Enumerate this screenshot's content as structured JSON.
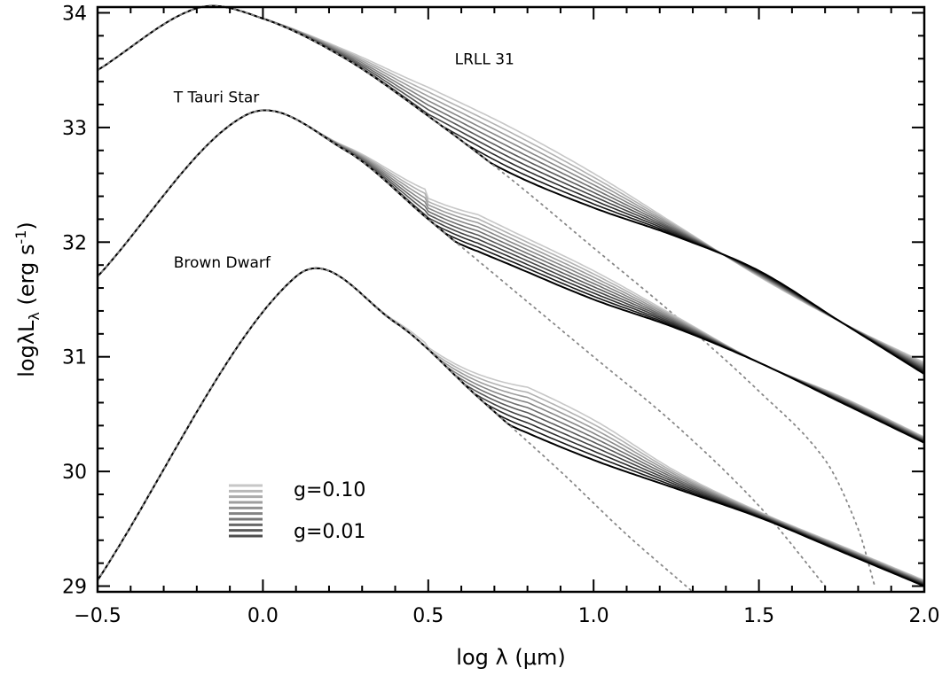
{
  "chart_data": {
    "type": "line",
    "title": "",
    "xlabel": "log λ (μm)",
    "ylabel": "logλL",
    "ylabel_sub": "λ",
    "ylabel_unit": " (erg s",
    "ylabel_unit_sup": "-1",
    "ylabel_unit_end": ")",
    "xlim": [
      -0.5,
      2.0
    ],
    "ylim": [
      28.95,
      34.05
    ],
    "x_ticks": [
      -0.5,
      0.0,
      0.5,
      1.0,
      1.5,
      2.0
    ],
    "x_tick_labels": [
      "−0.5",
      "0.0",
      "0.5",
      "1.0",
      "1.5",
      "2.0"
    ],
    "y_ticks": [
      29,
      30,
      31,
      32,
      33,
      34
    ],
    "y_tick_labels": [
      "29",
      "30",
      "31",
      "32",
      "33",
      "34"
    ],
    "grid": false,
    "legend": {
      "placement": "bottom-left",
      "g_values": [
        0.1,
        0.09,
        0.08,
        0.07,
        0.06,
        0.05,
        0.04,
        0.03,
        0.02,
        0.01
      ],
      "label_top": "g=0.10",
      "label_bottom": "g=0.01"
    },
    "groups": [
      {
        "name": "LRLL 31",
        "peak_x": -0.2,
        "peak_y": 34.04,
        "curvature": 3.6,
        "photosphere": {
          "x": [
            -0.5,
            -0.2,
            0.0,
            0.25,
            0.5,
            0.75,
            1.0,
            1.25,
            1.5,
            1.7,
            1.8,
            1.85
          ],
          "y": [
            33.5,
            34.04,
            33.95,
            33.6,
            33.1,
            32.55,
            31.95,
            31.35,
            30.7,
            30.1,
            29.5,
            29.0
          ]
        },
        "tail_base": {
          "x": [
            0.5,
            0.75,
            1.0,
            1.25,
            1.5,
            1.75,
            2.0
          ],
          "y": [
            33.0,
            32.6,
            32.3,
            32.05,
            31.75,
            31.3,
            30.85
          ]
        },
        "tail_g010": {
          "x": [
            0.5,
            0.75,
            1.0,
            1.25,
            1.5,
            1.75,
            2.0
          ],
          "y": [
            33.35,
            33.0,
            32.6,
            32.15,
            31.7,
            31.3,
            30.95
          ]
        }
      },
      {
        "name": "T Tauri Star",
        "peak_x": -0.05,
        "peak_y": 33.11,
        "curvature": 3.6,
        "photosphere": {
          "x": [
            -0.5,
            -0.05,
            0.25,
            0.5,
            0.75,
            1.0,
            1.25,
            1.5,
            1.7
          ],
          "y": [
            31.7,
            33.11,
            32.8,
            32.2,
            31.6,
            31.0,
            30.4,
            29.7,
            29.0
          ]
        },
        "tail_base": {
          "x": [
            0.5,
            0.75,
            1.0,
            1.25,
            1.5,
            1.75,
            2.0
          ],
          "y": [
            32.1,
            31.8,
            31.5,
            31.25,
            30.95,
            30.6,
            30.25
          ]
        },
        "tail_g010": {
          "x": [
            0.5,
            0.75,
            1.0,
            1.25,
            1.5,
            1.75,
            2.0
          ],
          "y": [
            32.45,
            32.1,
            31.75,
            31.35,
            30.95,
            30.65,
            30.3
          ]
        }
      },
      {
        "name": "Brown Dwarf",
        "peak_x": 0.1,
        "peak_y": 31.7,
        "curvature": 3.6,
        "photosphere": {
          "x": [
            -0.5,
            0.1,
            0.4,
            0.65,
            0.9,
            1.1,
            1.3
          ],
          "y": [
            29.05,
            31.7,
            31.3,
            30.65,
            30.0,
            29.45,
            28.95
          ]
        },
        "tail_base": {
          "x": [
            0.5,
            0.75,
            1.0,
            1.25,
            1.5,
            1.75,
            2.0
          ],
          "y": [
            30.75,
            30.4,
            30.1,
            29.85,
            29.6,
            29.3,
            29.0
          ]
        },
        "tail_g010": {
          "x": [
            0.5,
            0.75,
            1.0,
            1.25,
            1.5,
            1.75,
            2.0
          ],
          "y": [
            31.1,
            30.8,
            30.45,
            30.0,
            29.65,
            29.35,
            29.05
          ]
        }
      }
    ],
    "annotations": [
      {
        "text": "LRLL 31",
        "x": 0.58,
        "y": 33.55
      },
      {
        "text": "T Tauri Star",
        "x": -0.27,
        "y": 33.22
      },
      {
        "text": "Brown Dwarf",
        "x": -0.27,
        "y": 31.78
      }
    ],
    "colors": {
      "darkest": "#000000",
      "lightest": "#dddddd",
      "photosphere": "#888888"
    }
  }
}
